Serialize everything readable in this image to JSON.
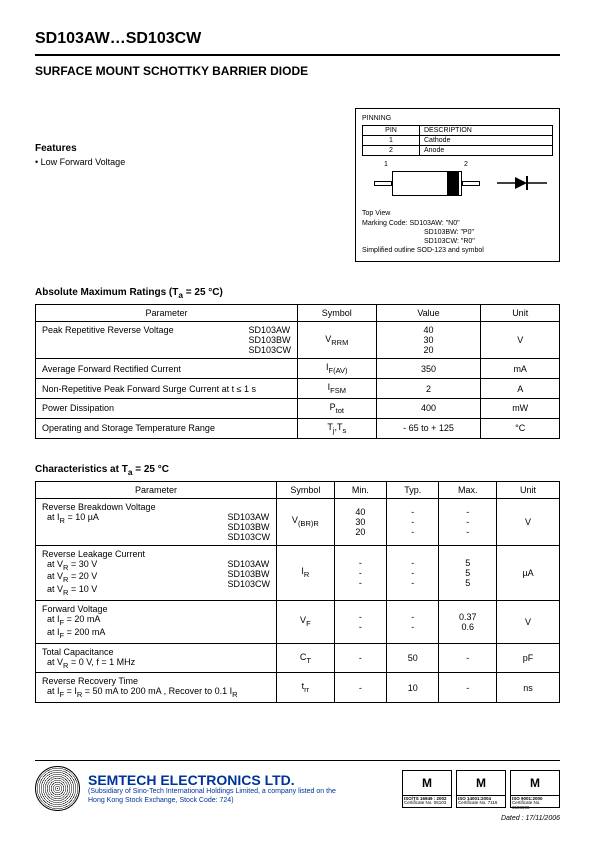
{
  "part_number": "SD103AW…SD103CW",
  "subtitle": "SURFACE MOUNT SCHOTTKY BARRIER DIODE",
  "features": {
    "heading": "Features",
    "items": [
      "• Low Forward Voltage"
    ]
  },
  "pinning": {
    "label": "PINNING",
    "columns": [
      "PIN",
      "DESCRIPTION"
    ],
    "rows": [
      [
        "1",
        "Cathode"
      ],
      [
        "2",
        "Anode"
      ]
    ],
    "pin1": "1",
    "pin2": "2",
    "topview": "Top View",
    "marking": [
      "Marking Code: SD103AW: \"N0\"",
      "SD103BW: \"P0\"",
      "SD103CW: \"R0\"",
      "Simplified outline SOD-123 and symbol"
    ]
  },
  "abs_max": {
    "title": "Absolute Maximum Ratings (T",
    "title_sub": "a",
    "title_tail": " = 25 °C)",
    "columns": [
      "Parameter",
      "Symbol",
      "Value",
      "Unit"
    ],
    "col_widths": [
      "50%",
      "15%",
      "20%",
      "15%"
    ],
    "rows": [
      {
        "param": "Peak Repetitive Reverse Voltage",
        "variants": [
          "SD103AW",
          "SD103BW",
          "SD103CW"
        ],
        "symbol": "VRRM",
        "symbol_html": "V<sub>RRM</sub>",
        "value": [
          "40",
          "30",
          "20"
        ],
        "unit": "V"
      },
      {
        "param": "Average Forward Rectified Current",
        "symbol_html": "I<sub>F(AV)</sub>",
        "value": "350",
        "unit": "mA"
      },
      {
        "param": "Non-Repetitive Peak Forward Surge Current at t ≤ 1 s",
        "symbol_html": "I<sub>FSM</sub>",
        "value": "2",
        "unit": "A"
      },
      {
        "param": "Power Dissipation",
        "symbol_html": "P<sub>tot</sub>",
        "value": "400",
        "unit": "mW"
      },
      {
        "param": "Operating and Storage Temperature Range",
        "symbol_html": "T<sub>j</sub>,T<sub>s</sub>",
        "value": "- 65 to + 125",
        "unit": "°C"
      }
    ]
  },
  "chars": {
    "title": "Characteristics at T",
    "title_sub": "a",
    "title_tail": " = 25 °C",
    "columns": [
      "Parameter",
      "Symbol",
      "Min.",
      "Typ.",
      "Max.",
      "Unit"
    ],
    "col_widths": [
      "46%",
      "11%",
      "10%",
      "10%",
      "11%",
      "12%"
    ],
    "rows": [
      {
        "param_lines": [
          "Reverse Breakdown Voltage",
          " at I<sub>R</sub> = 10 µA"
        ],
        "variants": [
          "SD103AW",
          "SD103BW",
          "SD103CW"
        ],
        "symbol_html": "V<sub>(BR)R</sub>",
        "min": [
          "40",
          "30",
          "20"
        ],
        "typ": [
          "-",
          "-",
          "-"
        ],
        "max": [
          "-",
          "-",
          "-"
        ],
        "unit": "V"
      },
      {
        "param_lines": [
          "Reverse Leakage Current",
          " at V<sub>R</sub> = 30 V",
          " at V<sub>R</sub> = 20 V",
          " at V<sub>R</sub> = 10 V"
        ],
        "variants": [
          "SD103AW",
          "SD103BW",
          "SD103CW"
        ],
        "symbol_html": "I<sub>R</sub>",
        "min": [
          "-",
          "-",
          "-"
        ],
        "typ": [
          "-",
          "-",
          "-"
        ],
        "max": [
          "5",
          "5",
          "5"
        ],
        "unit": "µA"
      },
      {
        "param_lines": [
          "Forward Voltage",
          " at I<sub>F</sub> = 20 mA",
          " at I<sub>F</sub> = 200 mA"
        ],
        "symbol_html": "V<sub>F</sub>",
        "min": [
          "-",
          "-"
        ],
        "typ": [
          "-",
          "-"
        ],
        "max": [
          "0.37",
          "0.6"
        ],
        "unit": "V"
      },
      {
        "param_lines": [
          "Total Capacitance",
          " at V<sub>R</sub> = 0 V, f = 1 MHz"
        ],
        "symbol_html": "C<sub>T</sub>",
        "min": "-",
        "typ": "50",
        "max": "-",
        "unit": "pF"
      },
      {
        "param_lines": [
          "Reverse Recovery Time",
          " at I<sub>F</sub> = I<sub>R</sub> = 50 mA to 200 mA , Recover to 0.1 I<sub>R</sub>"
        ],
        "symbol_html": "t<sub>rr</sub>",
        "min": "-",
        "typ": "10",
        "max": "-",
        "unit": "ns"
      }
    ]
  },
  "footer": {
    "company": "SEMTECH ELECTRONICS LTD.",
    "subtext": "(Subsidiary of Sino-Tech International Holdings Limited, a company listed on the Hong Kong Stock Exchange, Stock Code: 724)",
    "certs": [
      {
        "mark": "M",
        "line1": "ISO/TS 16949 : 2002",
        "line2": "Certificate No. 05103"
      },
      {
        "mark": "M",
        "line1": "ISO 14001:2004",
        "line2": "Certificate No. 7116"
      },
      {
        "mark": "M",
        "line1": "ISO 9001:2000",
        "line2": "Certificate No. 0508908"
      }
    ],
    "dated": "Dated : 17/11/2006",
    "company_color": "#003399"
  }
}
